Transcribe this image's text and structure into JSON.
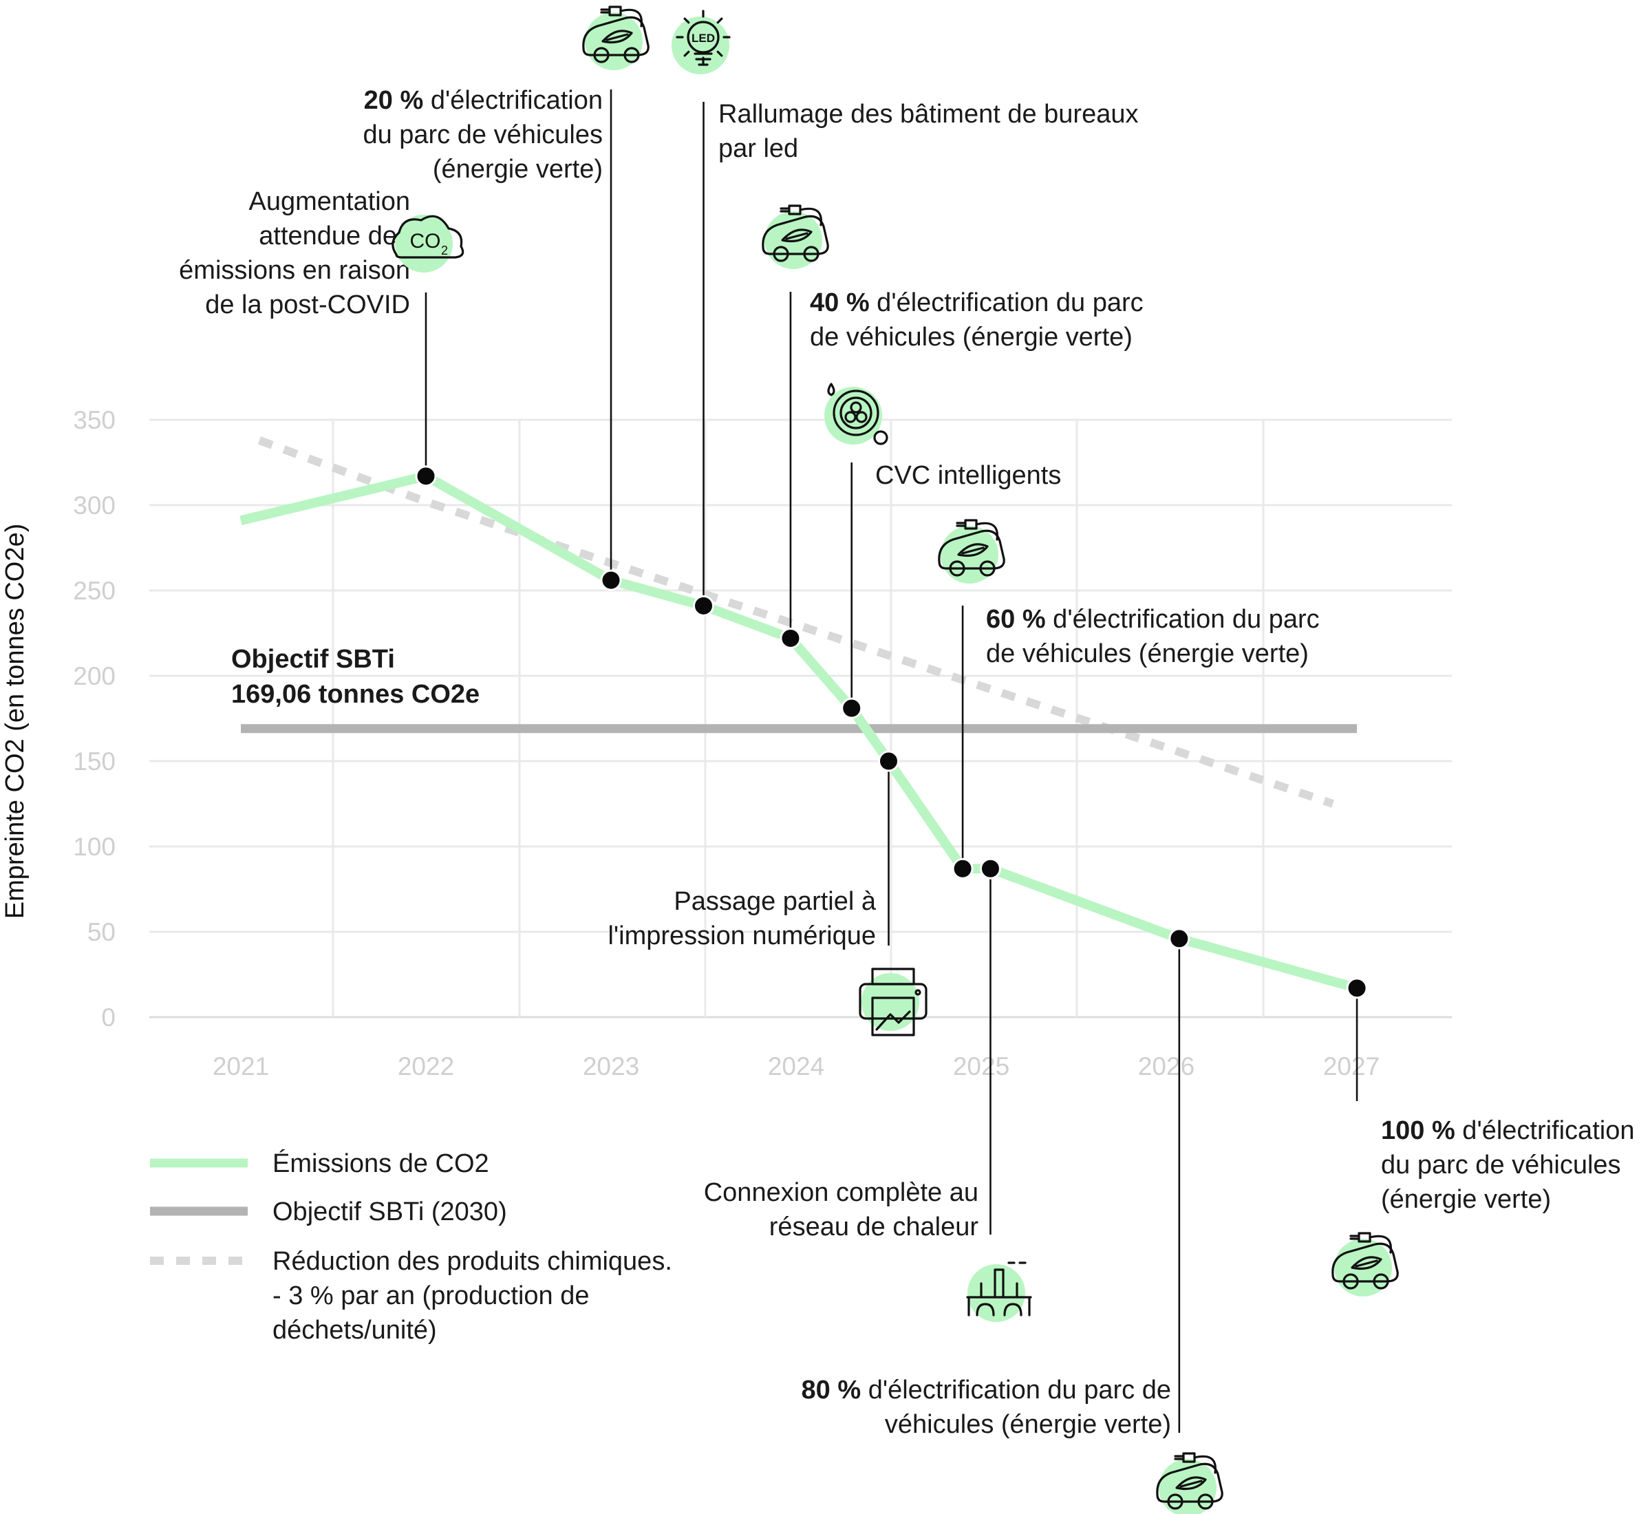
{
  "chart_data": {
    "type": "line",
    "title": "",
    "ylabel": "Empreinte CO2 (en tonnes CO2e)",
    "xlabel": "",
    "x_ticks": [
      "2021",
      "2022",
      "2023",
      "2024",
      "2025",
      "2026",
      "2027"
    ],
    "y_ticks": [
      0,
      50,
      100,
      150,
      200,
      250,
      300,
      350
    ],
    "xlim": [
      2021,
      2027.5
    ],
    "ylim": [
      0,
      350
    ],
    "grid": true,
    "series": [
      {
        "name": "Émissions de CO2",
        "color": "#b8f5c2",
        "style": "solid",
        "points": [
          {
            "x": 2021.0,
            "y": 291
          },
          {
            "x": 2022.0,
            "y": 317
          },
          {
            "x": 2023.0,
            "y": 256
          },
          {
            "x": 2023.5,
            "y": 241
          },
          {
            "x": 2023.97,
            "y": 222
          },
          {
            "x": 2024.3,
            "y": 181
          },
          {
            "x": 2024.5,
            "y": 150
          },
          {
            "x": 2024.9,
            "y": 87
          },
          {
            "x": 2025.05,
            "y": 87
          },
          {
            "x": 2026.07,
            "y": 46
          },
          {
            "x": 2027.03,
            "y": 17
          }
        ]
      },
      {
        "name": "Objectif SBTi (2030)",
        "color": "#b3b3b3",
        "style": "solid",
        "points": [
          {
            "x": 2021.0,
            "y": 169.06
          },
          {
            "x": 2027.03,
            "y": 169.06
          }
        ]
      },
      {
        "name": "Réduction des produits chimiques. - 3 % par an (production de déchets/unité)",
        "color": "#d8d8d8",
        "style": "dashed",
        "points": [
          {
            "x": 2021.1,
            "y": 338
          },
          {
            "x": 2022.0,
            "y": 302
          },
          {
            "x": 2023.0,
            "y": 266
          },
          {
            "x": 2024.0,
            "y": 230
          },
          {
            "x": 2025.0,
            "y": 194
          },
          {
            "x": 2026.0,
            "y": 158
          },
          {
            "x": 2026.9,
            "y": 125
          }
        ]
      }
    ],
    "markers": [
      {
        "x": 2022.0,
        "y": 317
      },
      {
        "x": 2023.0,
        "y": 256
      },
      {
        "x": 2023.5,
        "y": 241
      },
      {
        "x": 2023.97,
        "y": 222
      },
      {
        "x": 2024.3,
        "y": 181
      },
      {
        "x": 2024.5,
        "y": 150
      },
      {
        "x": 2024.9,
        "y": 87
      },
      {
        "x": 2025.05,
        "y": 87
      },
      {
        "x": 2026.07,
        "y": 46
      },
      {
        "x": 2027.03,
        "y": 17
      }
    ],
    "target_label": {
      "line1": "Objectif SBTi",
      "line2": "169,06 tonnes CO2e"
    },
    "legend": {
      "placement": "bottom-left",
      "items": [
        {
          "label_lines": [
            "Émissions de CO2"
          ],
          "color": "#b8f5c2",
          "style": "solid"
        },
        {
          "label_lines": [
            "Objectif SBTi (2030)"
          ],
          "color": "#b3b3b3",
          "style": "solid"
        },
        {
          "label_lines": [
            "Réduction des produits chimiques.",
            "- 3 % par an (production de",
            "déchets/unité)"
          ],
          "color": "#d8d8d8",
          "style": "dashed"
        }
      ]
    },
    "annotations": [
      {
        "x": 2022.0,
        "y": 317,
        "dir": "up",
        "align": "end",
        "icon": "co2-cloud-icon",
        "lines": [
          {
            "t": "Augmentation"
          },
          {
            "t": "attendue des"
          },
          {
            "t": "émissions en raison"
          },
          {
            "t": "de la post-COVID"
          }
        ]
      },
      {
        "x": 2023.0,
        "y": 256,
        "dir": "up",
        "align": "end",
        "icon": "electric-car-icon",
        "lines": [
          {
            "b": "20 %",
            "t": " d'électrification"
          },
          {
            "t": "du parc de véhicules"
          },
          {
            "t": "(énergie verte)"
          }
        ]
      },
      {
        "x": 2023.5,
        "y": 241,
        "dir": "up",
        "align": "start",
        "icon": "led-bulb-icon",
        "lines": [
          {
            "t": "Rallumage des bâtiment de bureaux"
          },
          {
            "t": "par led"
          }
        ]
      },
      {
        "x": 2023.97,
        "y": 222,
        "dir": "up",
        "align": "start",
        "icon": "electric-car-icon",
        "lines": [
          {
            "b": "40 %",
            "t": " d'électrification du parc"
          },
          {
            "t": "de véhicules (énergie verte)"
          }
        ]
      },
      {
        "x": 2024.3,
        "y": 181,
        "dir": "up",
        "align": "start",
        "icon": "smart-hvac-icon",
        "lines": [
          {
            "t": "CVC intelligents"
          }
        ]
      },
      {
        "x": 2024.9,
        "y": 87,
        "dir": "up",
        "align": "start",
        "icon": "electric-car-icon",
        "lines": [
          {
            "b": "60 %",
            "t": " d'électrification du parc"
          },
          {
            "t": "de véhicules (énergie verte)"
          }
        ]
      },
      {
        "x": 2024.5,
        "y": 150,
        "dir": "down",
        "align": "end",
        "icon": "printer-icon",
        "lines": [
          {
            "t": "Passage partiel à"
          },
          {
            "t": "l'impression numérique"
          }
        ]
      },
      {
        "x": 2025.05,
        "y": 87,
        "dir": "down",
        "align": "end",
        "icon": "heating-network-icon",
        "lines": [
          {
            "t": "Connexion complète au"
          },
          {
            "t": "réseau de chaleur"
          }
        ]
      },
      {
        "x": 2026.07,
        "y": 46,
        "dir": "down",
        "align": "end",
        "icon": "electric-car-icon",
        "lines": [
          {
            "b": "80 %",
            "t": " d'électrification du parc de"
          },
          {
            "t": "véhicules (énergie verte)"
          }
        ]
      },
      {
        "x": 2027.03,
        "y": 17,
        "dir": "down",
        "align": "start",
        "icon": "electric-car-icon",
        "lines": [
          {
            "b": "100 %",
            "t": " d'électrification"
          },
          {
            "t": "du parc de véhicules"
          },
          {
            "t": "(énergie verte)"
          }
        ]
      }
    ]
  }
}
